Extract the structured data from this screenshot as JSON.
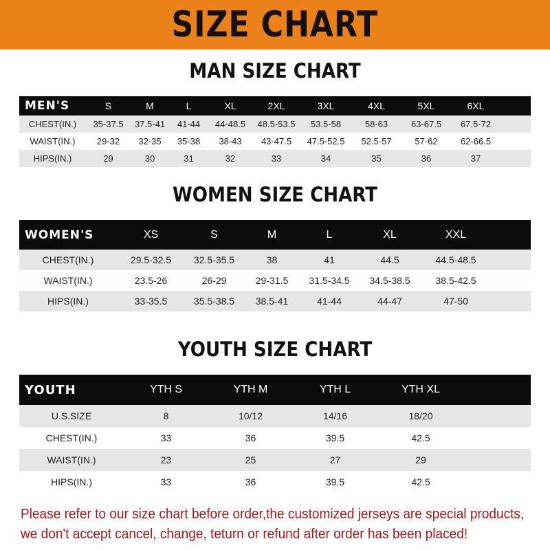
{
  "banner": {
    "title": "SIZE CHART",
    "color": "#ea8119"
  },
  "men": {
    "title": "MAN SIZE CHART",
    "header": [
      "MEN'S",
      "S",
      "M",
      "L",
      "XL",
      "2XL",
      "3XL",
      "4XL",
      "5XL",
      "6XL"
    ],
    "rows": [
      [
        "CHEST(IN.)",
        "35-37.5",
        "37.5-41",
        "41-44",
        "44-48.5",
        "48.5-53.5",
        "53.5-58",
        "58-63",
        "63-67.5",
        "67.5-72"
      ],
      [
        "WAIST(IN.)",
        "29-32",
        "32-35",
        "35-38",
        "38-43",
        "43-47.5",
        "47.5-52.5",
        "52.5-57",
        "57-62",
        "62-66.5"
      ],
      [
        "HIPS(IN.)",
        "29",
        "30",
        "31",
        "32",
        "33",
        "34",
        "35",
        "36",
        "37"
      ]
    ]
  },
  "women": {
    "title": "WOMEN SIZE CHART",
    "header": [
      "WOMEN'S",
      "XS",
      "S",
      "M",
      "L",
      "XL",
      "XXL"
    ],
    "rows": [
      [
        "CHEST(IN.)",
        "29.5-32.5",
        "32.5-35.5",
        "38",
        "41",
        "44.5",
        "44.5-48.5"
      ],
      [
        "WAIST(IN.)",
        "23.5-26",
        "26-29",
        "29-31.5",
        "31.5-34.5",
        "34.5-38.5",
        "38.5-42.5"
      ],
      [
        "HIPS(IN.)",
        "33-35.5",
        "35.5-38.5",
        "38.5-41",
        "41-44",
        "44-47",
        "47-50"
      ]
    ]
  },
  "youth": {
    "title": "YOUTH SIZE CHART",
    "header": [
      "YOUTH",
      "YTH S",
      "YTH M",
      "YTH L",
      "YTH XL"
    ],
    "rows": [
      [
        "U.S.SIZE",
        "8",
        "10/12",
        "14/16",
        "18/20"
      ],
      [
        "CHEST(IN.)",
        "33",
        "36",
        "39.5",
        "42.5"
      ],
      [
        "WAIST(IN.)",
        "23",
        "25",
        "27",
        "29"
      ],
      [
        "HIPS(IN.)",
        "33",
        "36",
        "39.5",
        "42.5"
      ]
    ]
  },
  "notice": {
    "line1": "Please refer to our size chart before order,the customized jerseys are special products,",
    "line2": "we don't accept cancel, change, teturn or refund after order has been placed!",
    "color": "#a01a1a"
  }
}
